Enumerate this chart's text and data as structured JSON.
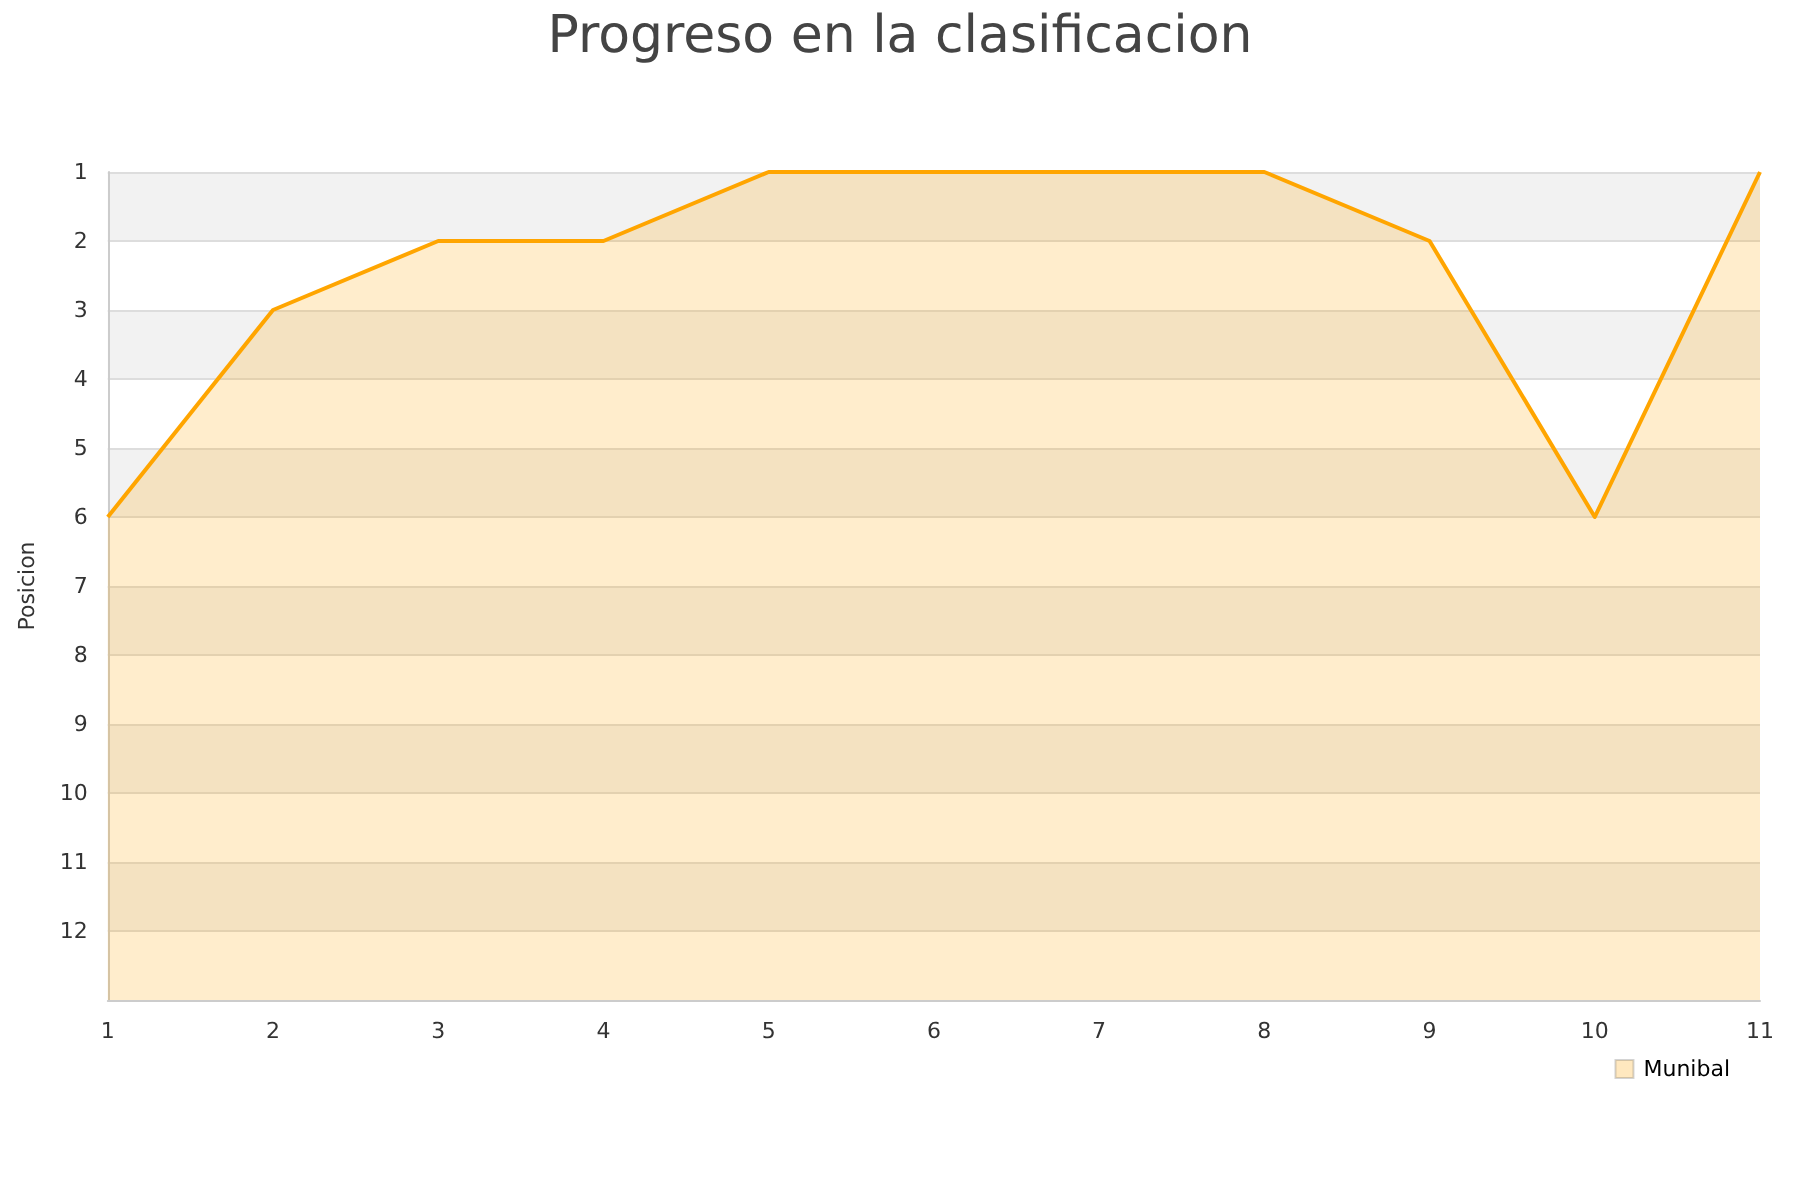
{
  "chart_data": {
    "type": "area",
    "title": "Progreso en la clasificacion",
    "ylabel": "Posicion",
    "x": [
      1,
      2,
      3,
      4,
      5,
      6,
      7,
      8,
      9,
      10,
      11
    ],
    "series": [
      {
        "name": "Munibal",
        "color": "#ffa500",
        "values": [
          6,
          3,
          2,
          2,
          1,
          1,
          1,
          1,
          2,
          6,
          1
        ]
      }
    ],
    "xlim": [
      1,
      11
    ],
    "xticks": [
      1,
      2,
      3,
      4,
      5,
      6,
      7,
      8,
      9,
      10,
      11
    ],
    "ylim": [
      13,
      1
    ],
    "yticks": [
      1,
      2,
      3,
      4,
      5,
      6,
      7,
      8,
      9,
      10,
      11,
      12
    ],
    "grid": "y",
    "legend": "bottom right",
    "marker": "none",
    "line_style": "solid"
  }
}
